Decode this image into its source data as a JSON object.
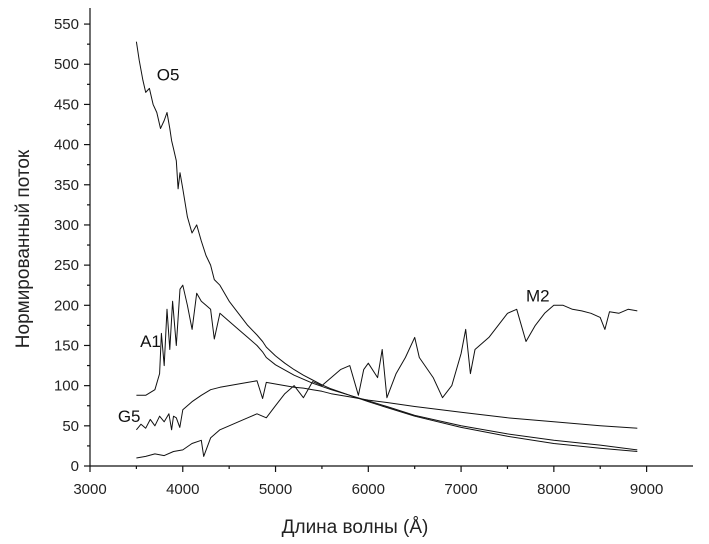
{
  "chart_data": {
    "type": "line",
    "xlabel": "Длина волны (Å)",
    "ylabel": "Нормированный поток",
    "xlim": [
      3000,
      9500
    ],
    "ylim": [
      0,
      570
    ],
    "xticks": [
      3000,
      4000,
      5000,
      6000,
      7000,
      8000,
      9000
    ],
    "yticks": [
      0,
      50,
      100,
      150,
      200,
      250,
      300,
      350,
      400,
      450,
      500,
      550
    ],
    "grid": false,
    "legend": "none",
    "series": [
      {
        "name": "O5",
        "x": [
          3500,
          3530,
          3570,
          3600,
          3640,
          3680,
          3720,
          3760,
          3800,
          3830,
          3860,
          3880,
          3900,
          3930,
          3950,
          3970,
          4000,
          4050,
          4100,
          4150,
          4200,
          4250,
          4300,
          4340,
          4400,
          4500,
          4600,
          4700,
          4800,
          4860,
          4900,
          5000,
          5100,
          5200,
          5300,
          5400,
          5500,
          5600,
          5800,
          6000,
          6500,
          7000,
          7500,
          8000,
          8500,
          8900
        ],
        "y": [
          528,
          505,
          480,
          465,
          470,
          450,
          440,
          420,
          430,
          440,
          420,
          405,
          395,
          380,
          345,
          365,
          345,
          310,
          290,
          300,
          280,
          262,
          250,
          232,
          225,
          205,
          190,
          175,
          163,
          155,
          148,
          137,
          128,
          120,
          113,
          107,
          101,
          96,
          88,
          80,
          62,
          48,
          37,
          28,
          22,
          18
        ]
      },
      {
        "name": "A1",
        "x": [
          3500,
          3600,
          3700,
          3750,
          3770,
          3800,
          3830,
          3860,
          3890,
          3930,
          3970,
          4000,
          4050,
          4101,
          4150,
          4200,
          4250,
          4300,
          4340,
          4400,
          4500,
          4600,
          4700,
          4800,
          4860,
          4900,
          5000,
          5200,
          5400,
          5600,
          5800,
          6000,
          6200,
          6500,
          7000,
          7500,
          8000,
          8500,
          8900
        ],
        "y": [
          88,
          88,
          95,
          115,
          165,
          125,
          195,
          145,
          205,
          150,
          220,
          225,
          200,
          170,
          215,
          205,
          200,
          195,
          158,
          190,
          180,
          170,
          160,
          150,
          142,
          135,
          126,
          113,
          103,
          95,
          88,
          81,
          74,
          63,
          50,
          40,
          32,
          26,
          20
        ]
      },
      {
        "name": "G5",
        "x": [
          3500,
          3550,
          3600,
          3650,
          3700,
          3750,
          3800,
          3850,
          3880,
          3900,
          3930,
          3968,
          4000,
          4100,
          4200,
          4300,
          4400,
          4500,
          4600,
          4700,
          4800,
          4861,
          4900,
          5000,
          5100,
          5200,
          5300,
          5400,
          5500,
          5600,
          5800,
          6000,
          6200,
          6500,
          7000,
          7500,
          8000,
          8500,
          8900
        ],
        "y": [
          45,
          52,
          47,
          58,
          50,
          62,
          55,
          65,
          45,
          62,
          60,
          48,
          70,
          80,
          88,
          95,
          98,
          100,
          102,
          104,
          106,
          84,
          104,
          102,
          100,
          98,
          97,
          95,
          93,
          90,
          86,
          82,
          79,
          74,
          67,
          60,
          55,
          50,
          47
        ]
      },
      {
        "name": "M2",
        "x": [
          3500,
          3600,
          3700,
          3800,
          3900,
          4000,
          4100,
          4200,
          4226,
          4300,
          4400,
          4500,
          4600,
          4700,
          4800,
          4900,
          5000,
          5100,
          5200,
          5300,
          5400,
          5500,
          5600,
          5700,
          5800,
          5893,
          5950,
          6000,
          6100,
          6150,
          6200,
          6300,
          6400,
          6500,
          6550,
          6700,
          6800,
          6900,
          7000,
          7050,
          7100,
          7150,
          7300,
          7500,
          7600,
          7700,
          7800,
          7900,
          8000,
          8100,
          8200,
          8300,
          8400,
          8500,
          8550,
          8600,
          8700,
          8800,
          8900
        ],
        "y": [
          10,
          12,
          15,
          13,
          18,
          20,
          28,
          32,
          12,
          35,
          45,
          50,
          55,
          60,
          65,
          60,
          75,
          90,
          100,
          85,
          105,
          100,
          110,
          120,
          125,
          88,
          120,
          128,
          110,
          145,
          85,
          115,
          135,
          160,
          135,
          110,
          85,
          100,
          140,
          170,
          115,
          145,
          160,
          190,
          195,
          155,
          175,
          190,
          200,
          200,
          195,
          193,
          190,
          185,
          170,
          192,
          190,
          195,
          193
        ]
      }
    ]
  }
}
